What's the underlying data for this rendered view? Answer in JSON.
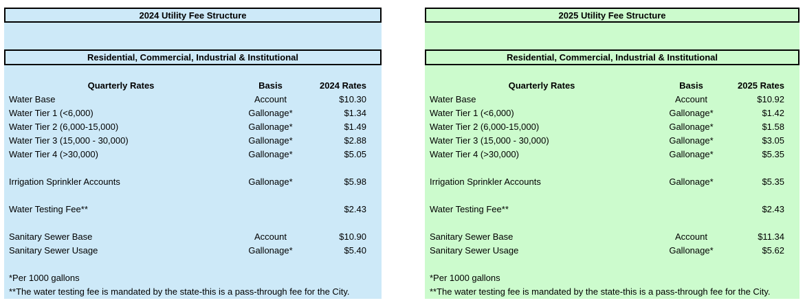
{
  "tables": [
    {
      "title": "2024 Utility Fee Structure",
      "subtitle": "Residential, Commercial, Industrial & Institutional",
      "fill_color": "#CDE9F8",
      "columns": {
        "quarterly": "Quarterly Rates",
        "basis": "Basis",
        "rates": "2024 Rates"
      },
      "rows": [
        {
          "label": "Water Base",
          "basis": "Account",
          "rate": "$10.30"
        },
        {
          "label": "Water Tier 1 (<6,000)",
          "basis": "Gallonage*",
          "rate": "$1.34"
        },
        {
          "label": "Water Tier 2 (6,000-15,000)",
          "basis": "Gallonage*",
          "rate": "$1.49"
        },
        {
          "label": "Water Tier 3 (15,000 - 30,000)",
          "basis": "Gallonage*",
          "rate": "$2.88"
        },
        {
          "label": "Water Tier 4 (>30,000)",
          "basis": "Gallonage*",
          "rate": "$5.05"
        },
        {
          "label": "",
          "basis": "",
          "rate": ""
        },
        {
          "label": "Irrigation Sprinkler Accounts",
          "basis": "Gallonage*",
          "rate": "$5.98"
        },
        {
          "label": "",
          "basis": "",
          "rate": ""
        },
        {
          "label": "Water Testing Fee**",
          "basis": "",
          "rate": "$2.43"
        },
        {
          "label": "",
          "basis": "",
          "rate": ""
        },
        {
          "label": "Sanitary Sewer Base",
          "basis": "Account",
          "rate": "$10.90"
        },
        {
          "label": "Sanitary Sewer Usage",
          "basis": "Gallonage*",
          "rate": "$5.40"
        },
        {
          "label": "",
          "basis": "",
          "rate": ""
        }
      ],
      "footnotes": [
        "*Per 1000 gallons",
        "**The water testing fee is mandated by the state-this is a pass-through fee for the City."
      ]
    },
    {
      "title": "2025 Utility Fee Structure",
      "subtitle": "Residential, Commercial, Industrial & Institutional",
      "fill_color": "#CCFBCD",
      "columns": {
        "quarterly": "Quarterly Rates",
        "basis": "Basis",
        "rates": "2025 Rates"
      },
      "rows": [
        {
          "label": "Water Base",
          "basis": "Account",
          "rate": "$10.92"
        },
        {
          "label": "Water Tier 1 (<6,000)",
          "basis": "Gallonage*",
          "rate": "$1.42"
        },
        {
          "label": "Water Tier 2 (6,000-15,000)",
          "basis": "Gallonage*",
          "rate": "$1.58"
        },
        {
          "label": "Water Tier 3 (15,000 - 30,000)",
          "basis": "Gallonage*",
          "rate": "$3.05"
        },
        {
          "label": "Water Tier 4 (>30,000)",
          "basis": "Gallonage*",
          "rate": "$5.35"
        },
        {
          "label": "",
          "basis": "",
          "rate": ""
        },
        {
          "label": "Irrigation Sprinkler Accounts",
          "basis": "Gallonage*",
          "rate": "$5.35"
        },
        {
          "label": "",
          "basis": "",
          "rate": ""
        },
        {
          "label": "Water Testing Fee**",
          "basis": "",
          "rate": "$2.43"
        },
        {
          "label": "",
          "basis": "",
          "rate": ""
        },
        {
          "label": "Sanitary Sewer Base",
          "basis": "Account",
          "rate": "$11.34"
        },
        {
          "label": "Sanitary Sewer Usage",
          "basis": "Gallonage*",
          "rate": "$5.62"
        },
        {
          "label": "",
          "basis": "",
          "rate": ""
        }
      ],
      "footnotes": [
        "*Per 1000 gallons",
        "**The water testing fee is mandated by the state-this is a pass-through fee for the City."
      ]
    }
  ]
}
